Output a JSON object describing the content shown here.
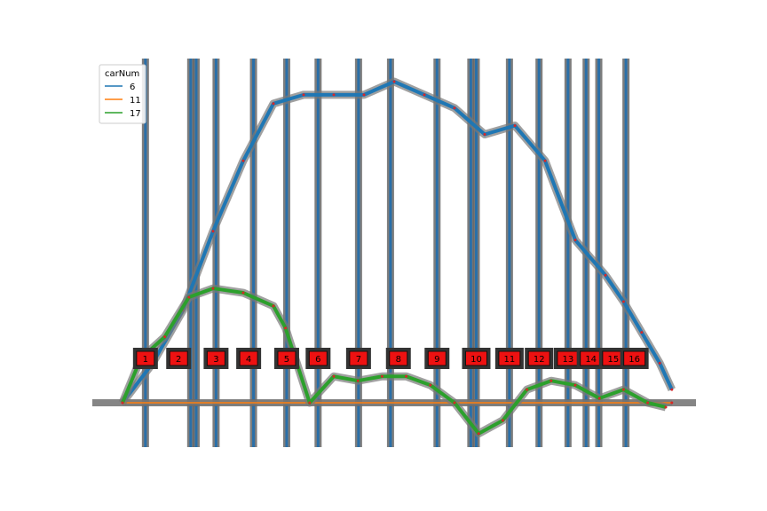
{
  "chart_data": {
    "type": "line",
    "title": "",
    "xlabel": "",
    "ylabel": "",
    "xlim": [
      0,
      1
    ],
    "ylim": [
      -0.9,
      7.3
    ],
    "legend": {
      "title": "carNum",
      "placement": "top-left",
      "entries": [
        "6",
        "11",
        "17"
      ]
    },
    "series": [
      {
        "name": "6",
        "color": "#1f77b4",
        "x": [
          0.05,
          0.1,
          0.15,
          0.2,
          0.25,
          0.3,
          0.35,
          0.4,
          0.45,
          0.5,
          0.55,
          0.6,
          0.65,
          0.7,
          0.75,
          0.8,
          0.85,
          0.88,
          0.91,
          0.94,
          0.96
        ],
        "y": [
          0.0,
          0.9,
          2.1,
          3.9,
          5.5,
          6.8,
          7.0,
          7.0,
          7.0,
          7.3,
          7.0,
          6.7,
          6.1,
          6.3,
          5.5,
          3.7,
          2.9,
          2.3,
          1.6,
          0.9,
          0.3
        ]
      },
      {
        "name": "11",
        "color": "#ff7f0e",
        "x": [
          0.05,
          0.96
        ],
        "y": [
          0.0,
          0.0
        ]
      },
      {
        "name": "17",
        "color": "#2ca02c",
        "x": [
          0.05,
          0.08,
          0.12,
          0.16,
          0.2,
          0.25,
          0.3,
          0.32,
          0.36,
          0.4,
          0.44,
          0.48,
          0.52,
          0.56,
          0.6,
          0.64,
          0.68,
          0.72,
          0.76,
          0.8,
          0.84,
          0.88,
          0.92,
          0.95
        ],
        "y": [
          0.0,
          1.0,
          1.5,
          2.4,
          2.6,
          2.5,
          2.2,
          1.7,
          0.0,
          0.6,
          0.5,
          0.6,
          0.6,
          0.4,
          0.0,
          -0.7,
          -0.4,
          0.3,
          0.5,
          0.4,
          0.1,
          0.3,
          0.0,
          -0.1
        ]
      }
    ],
    "markers": [
      {
        "label": "1",
        "x": 0.088
      },
      {
        "label": "2",
        "x": 0.143
      },
      {
        "label": "3",
        "x": 0.205
      },
      {
        "label": "4",
        "x": 0.259
      },
      {
        "label": "5",
        "x": 0.322
      },
      {
        "label": "6",
        "x": 0.374
      },
      {
        "label": "7",
        "x": 0.441
      },
      {
        "label": "8",
        "x": 0.507
      },
      {
        "label": "9",
        "x": 0.571
      },
      {
        "label": "10",
        "x": 0.636
      },
      {
        "label": "11",
        "x": 0.691
      },
      {
        "label": "12",
        "x": 0.74
      },
      {
        "label": "13",
        "x": 0.788
      },
      {
        "label": "14",
        "x": 0.826
      },
      {
        "label": "15",
        "x": 0.863
      },
      {
        "label": "16",
        "x": 0.898
      }
    ],
    "vlines_x": [
      0.088,
      0.163,
      0.172,
      0.205,
      0.267,
      0.322,
      0.374,
      0.441,
      0.494,
      0.571,
      0.627,
      0.636,
      0.691,
      0.74,
      0.788,
      0.818,
      0.839,
      0.884
    ],
    "grid": false
  }
}
